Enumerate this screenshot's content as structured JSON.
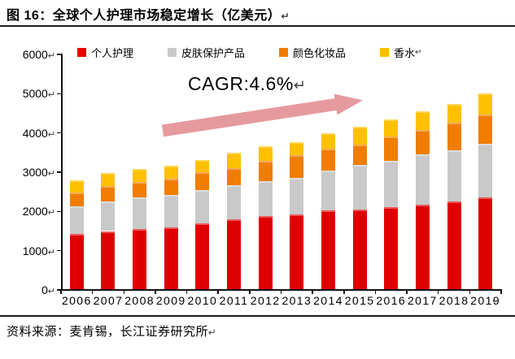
{
  "title": {
    "text": "图 16：全球个人护理市场稳定增长（亿美元）"
  },
  "marks": {
    "return": "↵"
  },
  "source": {
    "text": "资料来源：麦肯锡，长江证券研究所"
  },
  "chart_data": {
    "type": "bar",
    "stacked": true,
    "title": "全球个人护理市场稳定增长（亿美元）",
    "categories": [
      "2006",
      "2007",
      "2008",
      "2009",
      "2010",
      "2011",
      "2012",
      "2013",
      "2014",
      "2015",
      "2016",
      "2017",
      "2018",
      "2019"
    ],
    "series": [
      {
        "name": "个人护理",
        "color": "#df0000",
        "values": [
          1430,
          1500,
          1550,
          1590,
          1690,
          1790,
          1880,
          1930,
          2020,
          2050,
          2110,
          2180,
          2260,
          2360
        ]
      },
      {
        "name": "皮肤保护产品",
        "color": "#c9c9c9",
        "values": [
          710,
          760,
          810,
          830,
          860,
          870,
          900,
          930,
          1020,
          1140,
          1180,
          1280,
          1300,
          1370
        ]
      },
      {
        "name": "颜色化妆品",
        "color": "#f07d00",
        "values": [
          340,
          390,
          400,
          410,
          450,
          450,
          510,
          570,
          550,
          520,
          620,
          620,
          700,
          740
        ]
      },
      {
        "name": "香水",
        "color": "#ffc000",
        "values": [
          310,
          330,
          330,
          340,
          310,
          380,
          370,
          330,
          400,
          450,
          440,
          480,
          480,
          530
        ]
      }
    ],
    "totals": [
      2790,
      2980,
      3090,
      3170,
      3310,
      3490,
      3660,
      3760,
      3990,
      4160,
      4350,
      4560,
      4740,
      5000
    ],
    "xlabel": "",
    "ylabel": "",
    "ylim": [
      0,
      6000
    ],
    "y_ticks": [
      0,
      1000,
      2000,
      3000,
      4000,
      5000,
      6000
    ],
    "grid": false,
    "legend_position": "top",
    "annotation": {
      "text": "CAGR:4.6%",
      "arrow_color": "#e59a9e"
    }
  }
}
